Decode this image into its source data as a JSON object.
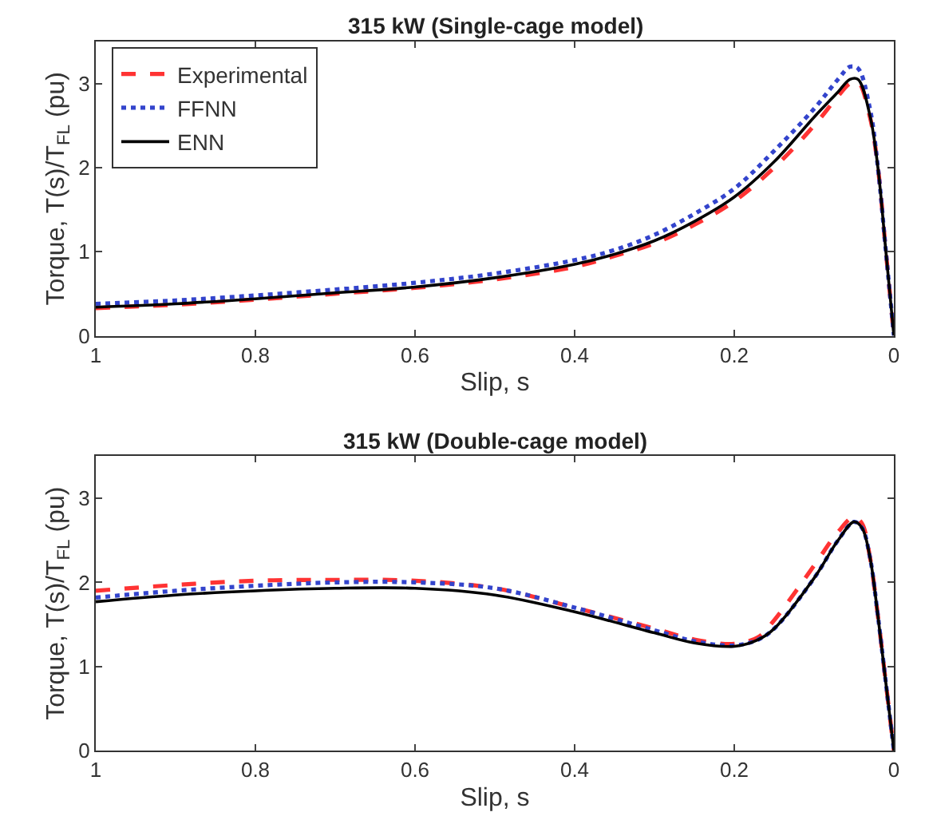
{
  "chart_data": [
    {
      "type": "line",
      "title": "315 kW (Single-cage model)",
      "xlabel": "Slip, s",
      "ylabel": "Torque, T(s)/T$_{FL}$ (pu)",
      "x": [
        1,
        0.9,
        0.8,
        0.7,
        0.6,
        0.5,
        0.4,
        0.35,
        0.3,
        0.25,
        0.2,
        0.15,
        0.1,
        0.07,
        0.055,
        0.045,
        0.03,
        0.02,
        0.01,
        0
      ],
      "xlim": [
        1,
        0
      ],
      "xticks": [
        1,
        0.8,
        0.6,
        0.4,
        0.2,
        0
      ],
      "ylim": [
        0,
        3.5
      ],
      "yticks": [
        0,
        1,
        2,
        3
      ],
      "legend": "top left",
      "series": [
        {
          "name": "Experimental",
          "color": "#ff3333",
          "line_style": "dashed",
          "values": [
            0.33,
            0.37,
            0.43,
            0.5,
            0.57,
            0.67,
            0.82,
            0.95,
            1.1,
            1.32,
            1.6,
            2.0,
            2.5,
            2.85,
            3.0,
            3.02,
            2.6,
            2.0,
            1.0,
            0
          ]
        },
        {
          "name": "FFNN",
          "color": "#3344cc",
          "line_style": "dotted",
          "values": [
            0.38,
            0.42,
            0.48,
            0.55,
            0.63,
            0.74,
            0.9,
            1.02,
            1.2,
            1.45,
            1.75,
            2.2,
            2.7,
            3.05,
            3.2,
            3.18,
            2.7,
            2.0,
            1.0,
            0
          ]
        },
        {
          "name": "ENN",
          "color": "#000000",
          "line_style": "solid",
          "values": [
            0.34,
            0.38,
            0.44,
            0.51,
            0.58,
            0.69,
            0.85,
            0.97,
            1.13,
            1.36,
            1.65,
            2.07,
            2.6,
            2.9,
            3.05,
            3.05,
            2.62,
            2.0,
            1.0,
            0
          ]
        }
      ]
    },
    {
      "type": "line",
      "title": "315 kW (Double-cage model)",
      "xlabel": "Slip, s",
      "ylabel": "Torque, T(s)/T$_{FL}$ (pu)",
      "x": [
        1,
        0.9,
        0.8,
        0.7,
        0.6,
        0.5,
        0.4,
        0.3,
        0.25,
        0.2,
        0.17,
        0.15,
        0.1,
        0.07,
        0.05,
        0.04,
        0.03,
        0.02,
        0.01,
        0
      ],
      "xlim": [
        1,
        0
      ],
      "xticks": [
        1,
        0.8,
        0.6,
        0.4,
        0.2,
        0
      ],
      "ylim": [
        0,
        3.5
      ],
      "yticks": [
        0,
        1,
        2,
        3
      ],
      "legend": false,
      "series": [
        {
          "color": "#ff3333",
          "line_style": "dashed",
          "values": [
            1.9,
            1.97,
            2.02,
            2.03,
            2.02,
            1.93,
            1.7,
            1.45,
            1.32,
            1.27,
            1.35,
            1.55,
            2.2,
            2.6,
            2.78,
            2.7,
            2.3,
            1.6,
            0.8,
            0
          ]
        },
        {
          "color": "#3344cc",
          "line_style": "dotted",
          "values": [
            1.82,
            1.9,
            1.96,
            2.0,
            2.0,
            1.93,
            1.7,
            1.43,
            1.3,
            1.25,
            1.32,
            1.45,
            2.05,
            2.5,
            2.72,
            2.65,
            2.3,
            1.6,
            0.8,
            0
          ]
        },
        {
          "color": "#000000",
          "line_style": "solid",
          "values": [
            1.77,
            1.85,
            1.9,
            1.93,
            1.93,
            1.85,
            1.65,
            1.4,
            1.28,
            1.24,
            1.32,
            1.45,
            2.05,
            2.5,
            2.72,
            2.65,
            2.3,
            1.6,
            0.8,
            0
          ]
        }
      ]
    }
  ]
}
